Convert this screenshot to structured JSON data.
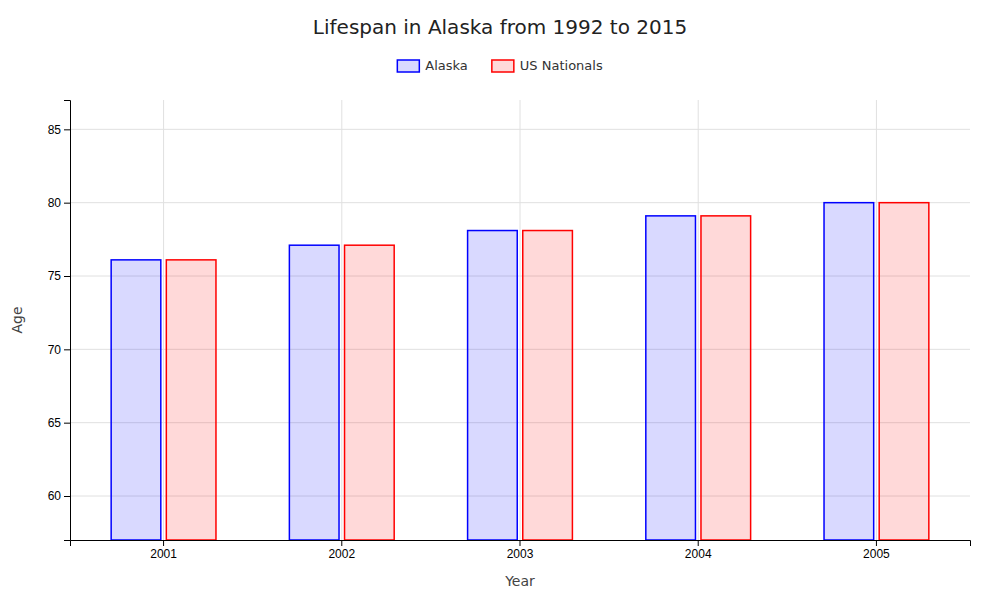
{
  "chart_data": {
    "type": "bar",
    "title": "Lifespan in Alaska from 1992 to 2015",
    "xlabel": "Year",
    "ylabel": "Age",
    "categories": [
      "2001",
      "2002",
      "2003",
      "2004",
      "2005"
    ],
    "series": [
      {
        "name": "Alaska",
        "color": "#0000ff",
        "values": [
          76.1,
          77.1,
          78.1,
          79.1,
          80.0
        ]
      },
      {
        "name": "US Nationals",
        "color": "#ff0000",
        "values": [
          76.1,
          77.1,
          78.1,
          79.1,
          80.0
        ]
      }
    ],
    "ylim": [
      57,
      87
    ],
    "yticks": [
      60,
      65,
      70,
      75,
      80,
      85
    ],
    "grid": true,
    "legend": "top"
  }
}
